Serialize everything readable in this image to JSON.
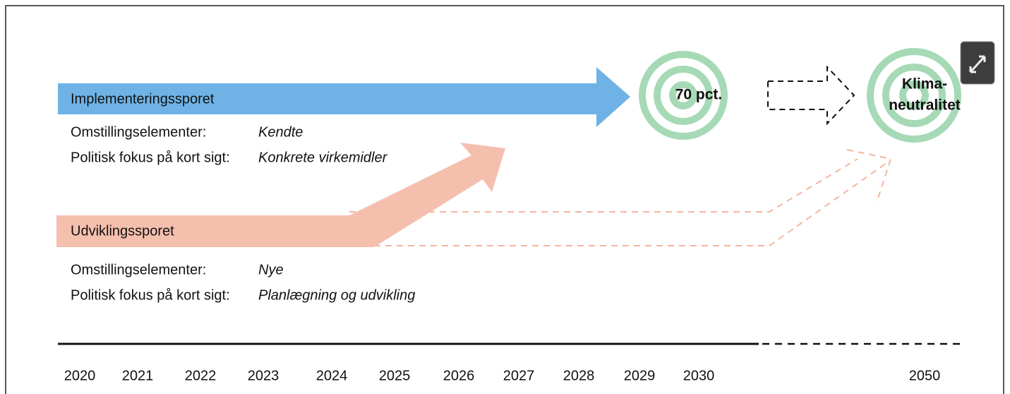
{
  "tracks": [
    {
      "label": "Implementeringssporet",
      "elements_label": "Omstillingselementer:",
      "elements_value": "Kendte",
      "focus_label": "Politisk fokus på kort sigt:",
      "focus_value": "Konkrete virkemidler"
    },
    {
      "label": "Udviklingssporet",
      "elements_label": "Omstillingselementer:",
      "elements_value": "Nye",
      "focus_label": "Politisk fokus på kort sigt:",
      "focus_value": "Planlægning og udvikling"
    }
  ],
  "targets": [
    {
      "lines": [
        "70 pct."
      ]
    },
    {
      "lines": [
        "Klima-",
        "neutralitet"
      ]
    }
  ],
  "years": [
    "2020",
    "2021",
    "2022",
    "2023",
    "2024",
    "2025",
    "2026",
    "2027",
    "2028",
    "2029",
    "2030",
    "2050"
  ]
}
